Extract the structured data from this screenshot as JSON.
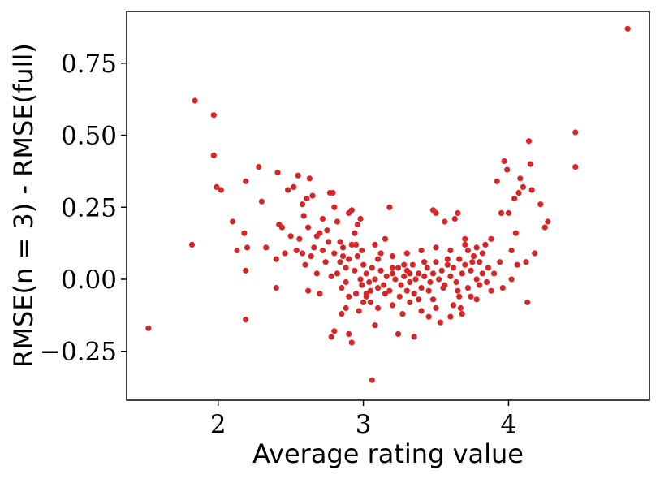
{
  "chart_data": {
    "type": "scatter",
    "xlabel": "Average rating value",
    "ylabel": "RMSE(n = 3) - RMSE(full)",
    "xlim": [
      1.37,
      4.97
    ],
    "ylim": [
      -0.42,
      0.93
    ],
    "xticks": [
      2,
      3,
      4
    ],
    "xtick_labels": [
      "2",
      "3",
      "4"
    ],
    "yticks": [
      -0.25,
      0.0,
      0.25,
      0.5,
      0.75
    ],
    "ytick_labels": [
      "−0.25",
      "0.00",
      "0.25",
      "0.50",
      "0.75"
    ],
    "grid": false,
    "marker_color": "#d62728",
    "series": [
      {
        "points": [
          [
            1.52,
            -0.17
          ],
          [
            1.82,
            0.12
          ],
          [
            1.84,
            0.62
          ],
          [
            1.97,
            0.57
          ],
          [
            1.97,
            0.43
          ],
          [
            1.99,
            0.32
          ],
          [
            2.02,
            0.31
          ],
          [
            2.1,
            0.2
          ],
          [
            2.13,
            0.1
          ],
          [
            2.18,
            0.16
          ],
          [
            2.19,
            0.34
          ],
          [
            2.2,
            0.11
          ],
          [
            2.19,
            0.03
          ],
          [
            2.19,
            -0.14
          ],
          [
            2.28,
            0.39
          ],
          [
            2.3,
            0.27
          ],
          [
            2.33,
            0.11
          ],
          [
            2.4,
            0.07
          ],
          [
            2.41,
            0.37
          ],
          [
            2.42,
            0.19
          ],
          [
            2.44,
            0.18
          ],
          [
            2.4,
            -0.03
          ],
          [
            2.46,
            0.09
          ],
          [
            2.48,
            0.31
          ],
          [
            2.52,
            0.32
          ],
          [
            2.55,
            0.36
          ],
          [
            2.58,
            0.26
          ],
          [
            2.59,
            0.22
          ],
          [
            2.61,
            0.28
          ],
          [
            2.63,
            0.35
          ],
          [
            2.65,
            0.29
          ],
          [
            2.62,
            0.18
          ],
          [
            2.66,
            0.11
          ],
          [
            2.68,
            0.15
          ],
          [
            2.58,
            0.09
          ],
          [
            2.6,
            0.05
          ],
          [
            2.62,
            -0.04
          ],
          [
            2.7,
            -0.05
          ],
          [
            2.72,
            0.21
          ],
          [
            2.75,
            0.17
          ],
          [
            2.77,
            0.3
          ],
          [
            2.79,
            0.3
          ],
          [
            2.8,
            0.25
          ],
          [
            2.82,
            0.2
          ],
          [
            2.84,
            0.13
          ],
          [
            2.86,
            0.08
          ],
          [
            2.88,
            0.04
          ],
          [
            2.9,
            0.23
          ],
          [
            2.92,
            0.24
          ],
          [
            2.94,
            0.16
          ],
          [
            2.96,
            0.19
          ],
          [
            2.98,
            0.21
          ],
          [
            2.78,
            -0.2
          ],
          [
            2.8,
            -0.18
          ],
          [
            2.85,
            -0.12
          ],
          [
            2.88,
            -0.1
          ],
          [
            2.9,
            -0.19
          ],
          [
            2.92,
            -0.22
          ],
          [
            2.95,
            -0.05
          ],
          [
            2.97,
            -0.11
          ],
          [
            2.99,
            -0.02
          ],
          [
            3.02,
            -0.06
          ],
          [
            3.05,
            -0.08
          ],
          [
            3.06,
            -0.35
          ],
          [
            3.08,
            -0.16
          ],
          [
            3.12,
            0.09
          ],
          [
            3.15,
            0.14
          ],
          [
            3.18,
            0.25
          ],
          [
            3.2,
            0.04
          ],
          [
            3.24,
            -0.19
          ],
          [
            3.27,
            -0.12
          ],
          [
            3.3,
            -0.04
          ],
          [
            3.32,
            0.02
          ],
          [
            3.35,
            -0.2
          ],
          [
            3.38,
            -0.07
          ],
          [
            3.42,
            0.06
          ],
          [
            3.45,
            -0.13
          ],
          [
            3.48,
            0.24
          ],
          [
            3.5,
            0.23
          ],
          [
            3.53,
            -0.15
          ],
          [
            3.56,
            0.2
          ],
          [
            3.6,
            -0.13
          ],
          [
            3.63,
            0.21
          ],
          [
            3.65,
            0.23
          ],
          [
            3.67,
            -0.1
          ],
          [
            3.7,
            0.14
          ],
          [
            3.72,
            -0.03
          ],
          [
            3.75,
            0.06
          ],
          [
            3.78,
            0.11
          ],
          [
            3.8,
            -0.02
          ],
          [
            3.82,
            0.09
          ],
          [
            3.85,
            -0.01
          ],
          [
            3.88,
            0.14
          ],
          [
            3.92,
            0.34
          ],
          [
            3.95,
            0.23
          ],
          [
            3.97,
            0.41
          ],
          [
            3.99,
            0.38
          ],
          [
            4.0,
            0.23
          ],
          [
            4.02,
            0.1
          ],
          [
            4.04,
            0.28
          ],
          [
            4.05,
            0.16
          ],
          [
            4.07,
            0.3
          ],
          [
            4.08,
            0.35
          ],
          [
            4.1,
            0.32
          ],
          [
            4.12,
            0.06
          ],
          [
            4.13,
            -0.08
          ],
          [
            4.14,
            0.48
          ],
          [
            4.15,
            0.4
          ],
          [
            4.16,
            0.31
          ],
          [
            4.18,
            0.09
          ],
          [
            4.22,
            0.26
          ],
          [
            4.25,
            0.18
          ],
          [
            4.27,
            0.2
          ],
          [
            4.46,
            0.51
          ],
          [
            4.46,
            0.39
          ],
          [
            4.82,
            0.87
          ],
          [
            2.72,
            0.1
          ],
          [
            2.74,
            0.06
          ],
          [
            2.76,
            0.13
          ],
          [
            2.78,
            0.01
          ],
          [
            2.8,
            0.09
          ],
          [
            2.82,
            0.02
          ],
          [
            2.84,
            0.06
          ],
          [
            2.86,
            0.11
          ],
          [
            2.88,
            -0.01
          ],
          [
            2.9,
            0.07
          ],
          [
            2.92,
            0.12
          ],
          [
            2.94,
            0.03
          ],
          [
            2.96,
            0.08
          ],
          [
            2.98,
            0.0
          ],
          [
            3.0,
            0.05
          ],
          [
            3.02,
            0.02
          ],
          [
            3.04,
            -0.01
          ],
          [
            3.06,
            0.04
          ],
          [
            3.08,
            0.0
          ],
          [
            3.1,
            -0.03
          ],
          [
            3.12,
            0.03
          ],
          [
            3.14,
            -0.02
          ],
          [
            3.16,
            0.01
          ],
          [
            3.18,
            -0.04
          ],
          [
            3.2,
            0.02
          ],
          [
            3.22,
            0.0
          ],
          [
            3.24,
            0.04
          ],
          [
            3.26,
            -0.02
          ],
          [
            3.28,
            0.01
          ],
          [
            3.3,
            0.03
          ],
          [
            3.32,
            -0.01
          ],
          [
            3.34,
            0.05
          ],
          [
            3.36,
            0.0
          ],
          [
            3.38,
            0.02
          ],
          [
            3.4,
            -0.03
          ],
          [
            3.42,
            0.01
          ],
          [
            3.44,
            0.04
          ],
          [
            3.46,
            -0.01
          ],
          [
            3.48,
            0.02
          ],
          [
            3.5,
            0.06
          ],
          [
            3.52,
            0.0
          ],
          [
            3.54,
            0.03
          ],
          [
            3.56,
            -0.02
          ],
          [
            3.58,
            0.05
          ],
          [
            3.6,
            0.01
          ],
          [
            3.62,
            0.04
          ],
          [
            3.64,
            -0.01
          ],
          [
            3.66,
            0.07
          ],
          [
            3.68,
            0.02
          ],
          [
            3.7,
            0.05
          ],
          [
            3.72,
            0.1
          ],
          [
            3.74,
            0.03
          ],
          [
            3.76,
            0.08
          ],
          [
            3.78,
            0.0
          ],
          [
            3.8,
            0.06
          ],
          [
            3.82,
            0.02
          ],
          [
            3.84,
            0.12
          ],
          [
            3.86,
            0.04
          ],
          [
            3.05,
            -0.04
          ],
          [
            3.15,
            -0.05
          ],
          [
            3.25,
            -0.06
          ],
          [
            3.35,
            -0.05
          ],
          [
            3.45,
            -0.04
          ],
          [
            3.55,
            -0.03
          ],
          [
            3.65,
            -0.04
          ],
          [
            3.1,
            0.07
          ],
          [
            3.2,
            0.08
          ],
          [
            3.3,
            0.09
          ],
          [
            3.4,
            0.1
          ],
          [
            3.5,
            0.11
          ],
          [
            3.6,
            0.1
          ],
          [
            3.7,
            0.12
          ],
          [
            3.28,
            0.05
          ],
          [
            3.42,
            0.06
          ],
          [
            3.58,
            0.07
          ],
          [
            3.02,
            -0.05
          ],
          [
            3.32,
            -0.08
          ],
          [
            3.48,
            -0.07
          ],
          [
            3.62,
            -0.09
          ],
          [
            2.68,
            0.02
          ],
          [
            2.7,
            0.16
          ],
          [
            2.64,
            0.08
          ],
          [
            2.56,
            0.14
          ],
          [
            2.54,
            0.1
          ],
          [
            2.5,
            0.15
          ],
          [
            2.95,
            0.12
          ],
          [
            2.99,
            0.1
          ],
          [
            3.08,
            0.12
          ],
          [
            3.66,
            -0.06
          ],
          [
            3.74,
            -0.06
          ],
          [
            3.88,
            -0.04
          ],
          [
            3.9,
            0.02
          ],
          [
            3.94,
            0.06
          ],
          [
            3.96,
            -0.03
          ],
          [
            4.02,
            0.0
          ],
          [
            4.06,
            0.05
          ],
          [
            2.85,
            -0.03
          ],
          [
            2.9,
            -0.06
          ],
          [
            3.0,
            -0.08
          ],
          [
            3.1,
            -0.1
          ],
          [
            3.2,
            -0.09
          ],
          [
            3.4,
            -0.11
          ],
          [
            3.5,
            -0.1
          ],
          [
            3.68,
            -0.12
          ],
          [
            3.78,
            -0.07
          ]
        ]
      }
    ]
  }
}
